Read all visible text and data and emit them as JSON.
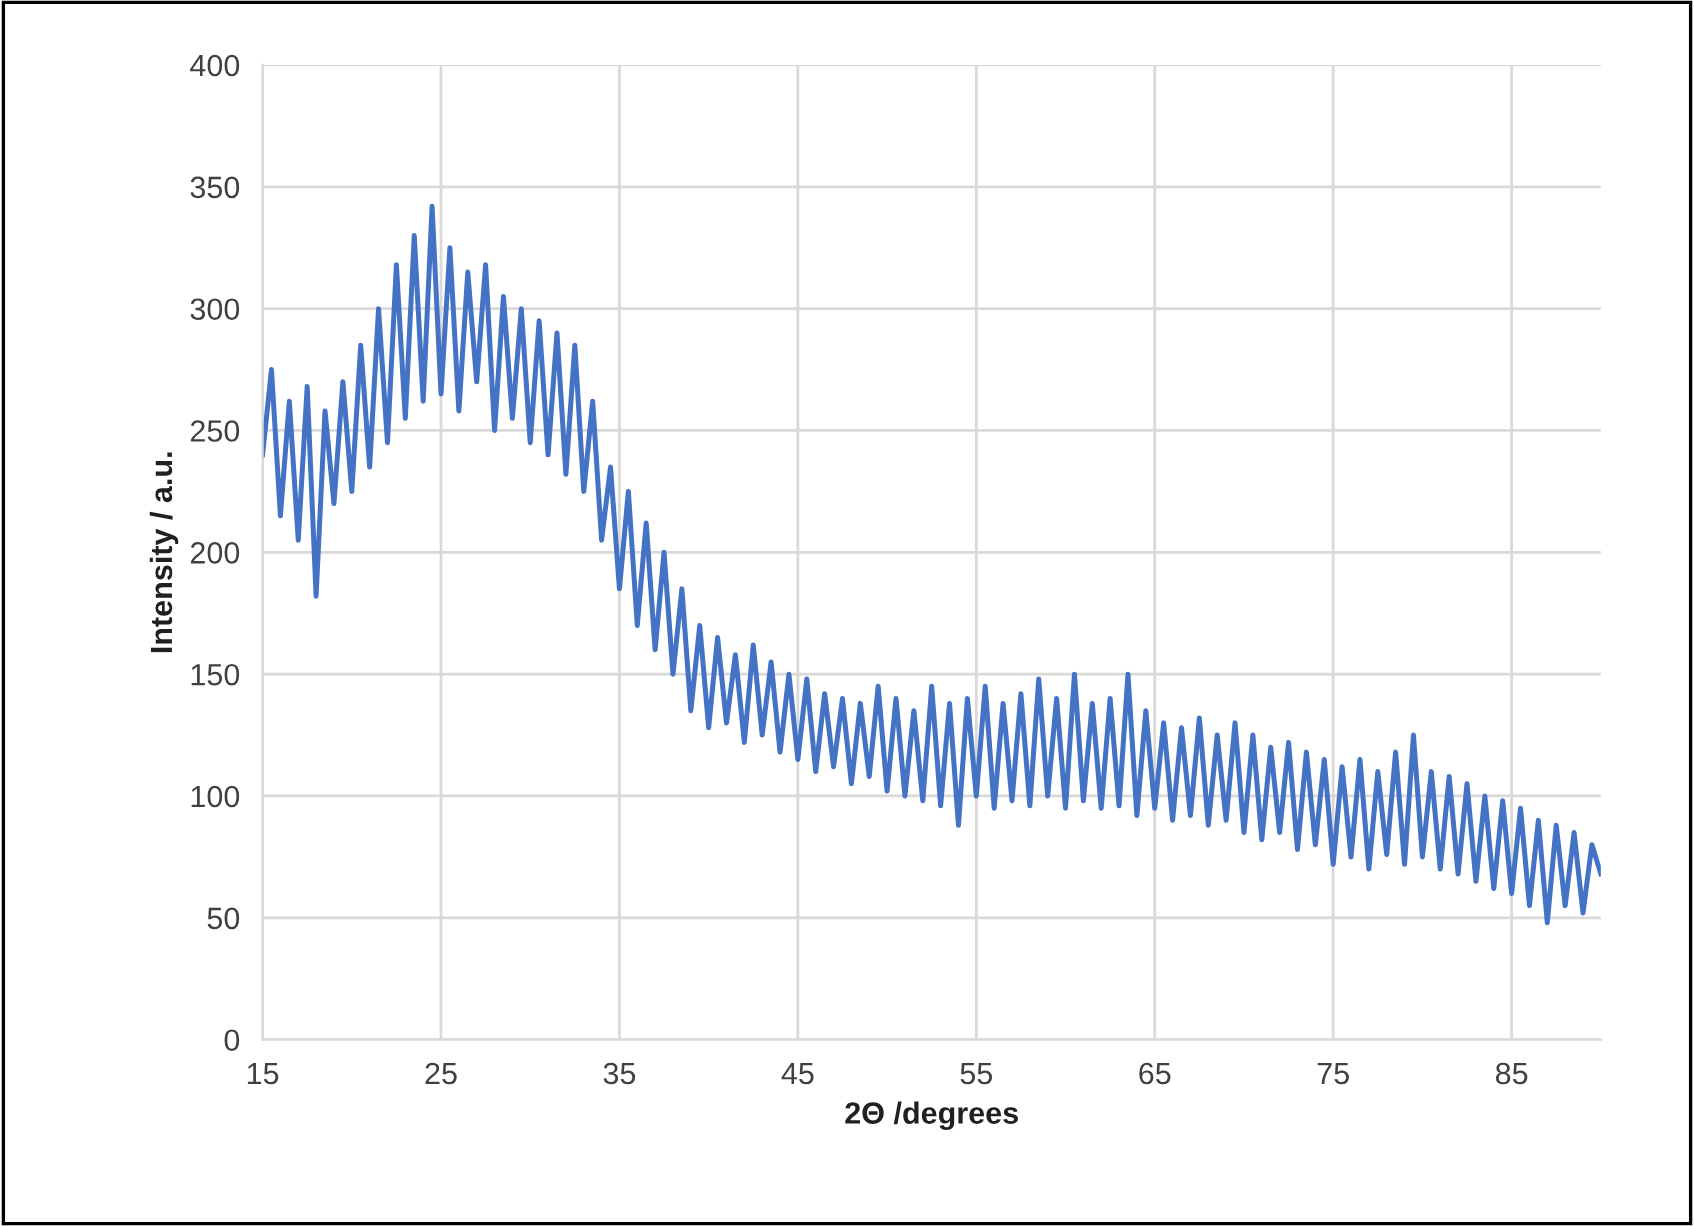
{
  "chart_data": {
    "type": "line",
    "xlabel": "2Θ /degrees",
    "ylabel": "Intensity / a.u.",
    "xlim": [
      15,
      90
    ],
    "xticks": [
      15,
      25,
      35,
      45,
      55,
      65,
      75,
      85
    ],
    "ylim": [
      0,
      400
    ],
    "yticks": [
      0,
      50,
      100,
      150,
      200,
      250,
      300,
      350,
      400
    ],
    "grid": true,
    "marker": "none",
    "line_style": "solid",
    "series": [
      {
        "color": "#4472c4",
        "x": [
          15,
          15.5,
          16,
          16.5,
          17,
          17.5,
          18,
          18.5,
          19,
          19.5,
          20,
          20.5,
          21,
          21.5,
          22,
          22.5,
          23,
          23.5,
          24,
          24.5,
          25,
          25.5,
          26,
          26.5,
          27,
          27.5,
          28,
          28.5,
          29,
          29.5,
          30,
          30.5,
          31,
          31.5,
          32,
          32.5,
          33,
          33.5,
          34,
          34.5,
          35,
          35.5,
          36,
          36.5,
          37,
          37.5,
          38,
          38.5,
          39,
          39.5,
          40,
          40.5,
          41,
          41.5,
          42,
          42.5,
          43,
          43.5,
          44,
          44.5,
          45,
          45.5,
          46,
          46.5,
          47,
          47.5,
          48,
          48.5,
          49,
          49.5,
          50,
          50.5,
          51,
          51.5,
          52,
          52.5,
          53,
          53.5,
          54,
          54.5,
          55,
          55.5,
          56,
          56.5,
          57,
          57.5,
          58,
          58.5,
          59,
          59.5,
          60,
          60.5,
          61,
          61.5,
          62,
          62.5,
          63,
          63.5,
          64,
          64.5,
          65,
          65.5,
          66,
          66.5,
          67,
          67.5,
          68,
          68.5,
          69,
          69.5,
          70,
          70.5,
          71,
          71.5,
          72,
          72.5,
          73,
          73.5,
          74,
          74.5,
          75,
          75.5,
          76,
          76.5,
          77,
          77.5,
          78,
          78.5,
          79,
          79.5,
          80,
          80.5,
          81,
          81.5,
          82,
          82.5,
          83,
          83.5,
          84,
          84.5,
          85,
          85.5,
          86,
          86.5,
          87,
          87.5,
          88,
          88.5,
          89,
          89.5,
          90
        ],
        "values": [
          240,
          275,
          215,
          262,
          205,
          268,
          182,
          258,
          220,
          270,
          225,
          285,
          235,
          300,
          245,
          318,
          255,
          330,
          262,
          342,
          265,
          325,
          258,
          315,
          270,
          318,
          250,
          305,
          255,
          300,
          245,
          295,
          240,
          290,
          232,
          285,
          225,
          262,
          205,
          235,
          185,
          225,
          170,
          212,
          160,
          200,
          150,
          185,
          135,
          170,
          128,
          165,
          130,
          158,
          122,
          162,
          125,
          155,
          118,
          150,
          115,
          148,
          110,
          142,
          112,
          140,
          105,
          138,
          108,
          145,
          102,
          140,
          100,
          135,
          98,
          145,
          96,
          138,
          88,
          140,
          100,
          145,
          95,
          138,
          98,
          142,
          96,
          148,
          100,
          140,
          95,
          150,
          98,
          138,
          95,
          140,
          96,
          150,
          92,
          135,
          95,
          130,
          90,
          128,
          92,
          132,
          88,
          125,
          90,
          130,
          85,
          125,
          82,
          120,
          85,
          122,
          78,
          118,
          80,
          115,
          72,
          112,
          75,
          115,
          70,
          110,
          76,
          118,
          72,
          125,
          75,
          110,
          70,
          108,
          68,
          105,
          65,
          100,
          62,
          98,
          60,
          95,
          55,
          90,
          48,
          88,
          55,
          85,
          52,
          80,
          68
        ]
      }
    ]
  }
}
